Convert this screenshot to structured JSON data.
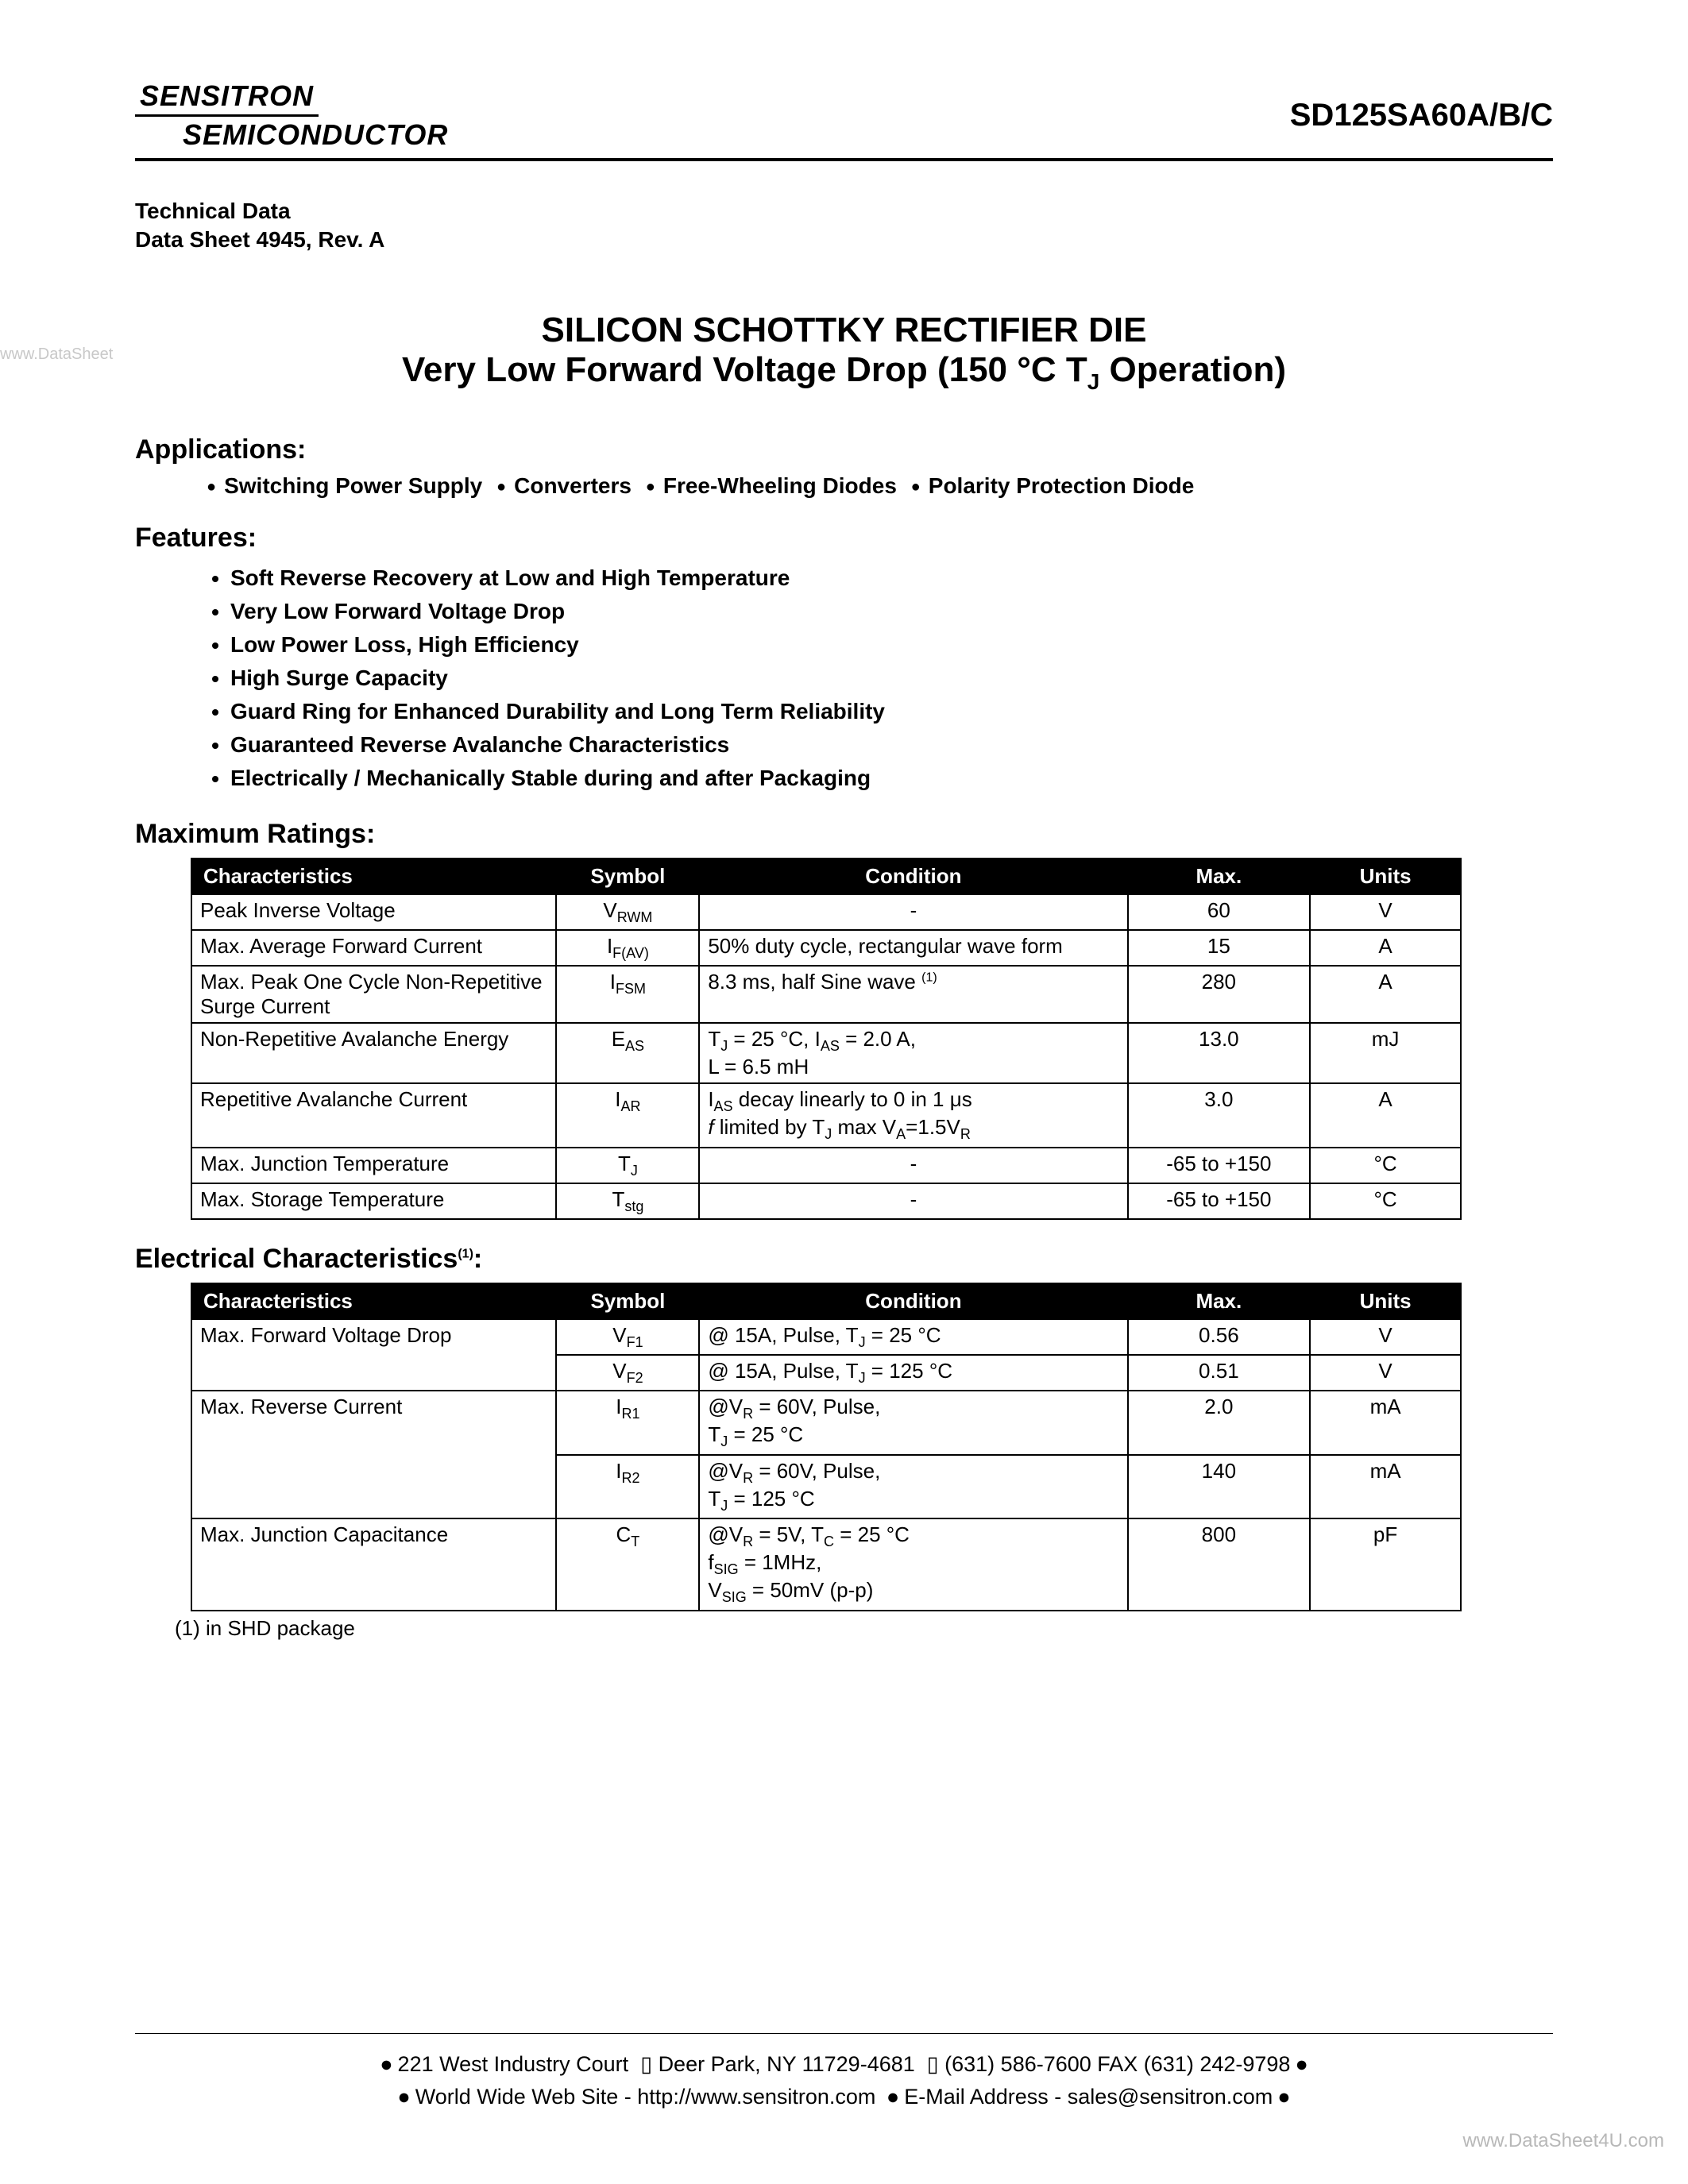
{
  "header": {
    "company_top": "SENSITRON",
    "company_bottom": "SEMICONDUCTOR",
    "part_number": "SD125SA60A/B/C"
  },
  "tech_data": {
    "line1": "Technical Data",
    "line2": "Data Sheet 4945, Rev. A"
  },
  "title": {
    "main": "SILICON SCHOTTKY RECTIFIER DIE",
    "sub_prefix": "Very Low Forward Voltage Drop (150 °C T",
    "sub_j": "J",
    "sub_suffix": " Operation)"
  },
  "sections": {
    "applications_heading": "Applications:",
    "features_heading": "Features:",
    "max_ratings_heading": "Maximum Ratings:",
    "elec_char_heading": "Electrical Characteristics",
    "elec_char_sup": "(1)",
    "elec_char_colon": ":"
  },
  "applications": {
    "items": [
      "Switching Power Supply",
      "Converters",
      "Free-Wheeling Diodes",
      "Polarity Protection Diode"
    ]
  },
  "features": {
    "items": [
      "Soft Reverse Recovery at Low and High Temperature",
      "Very Low Forward Voltage Drop",
      "Low Power Loss, High Efficiency",
      "High Surge Capacity",
      "Guard Ring for Enhanced Durability and Long Term Reliability",
      "Guaranteed Reverse Avalanche Characteristics",
      "Electrically / Mechanically Stable during and after Packaging"
    ]
  },
  "table_headers": {
    "char": "Characteristics",
    "symbol": "Symbol",
    "condition": "Condition",
    "max": "Max.",
    "units": "Units"
  },
  "max_ratings": {
    "rows": [
      {
        "char": "Peak Inverse Voltage",
        "sym_main": "V",
        "sym_sub": "RWM",
        "cond": "-",
        "max": "60",
        "units": "V"
      },
      {
        "char": "Max. Average Forward Current",
        "sym_main": "I",
        "sym_sub": "F(AV)",
        "cond": "50% duty cycle, rectangular wave form",
        "max": "15",
        "units": "A"
      },
      {
        "char": "Max. Peak One Cycle Non-Repetitive Surge Current",
        "sym_main": "I",
        "sym_sub": "FSM",
        "cond": "8.3 ms, half Sine wave ",
        "cond_sup": "(1)",
        "max": "280",
        "units": "A"
      },
      {
        "char": "Non-Repetitive Avalanche Energy",
        "sym_main": "E",
        "sym_sub": "AS",
        "cond_html": "T<sub class='sub'>J</sub> = 25 °C, I<sub class='sub'>AS</sub> = 2.0 A,<br>L = 6.5  mH",
        "max": "13.0",
        "units": "mJ"
      },
      {
        "char": "Repetitive Avalanche Current",
        "sym_main": "I",
        "sym_sub": "AR",
        "cond_html": "I<sub class='sub'>AS</sub> decay linearly to 0 in 1 μs<br><i>f</i> limited by T<sub class='sub'>J</sub> max V<sub class='sub'>A</sub>=1.5V<sub class='sub'>R</sub>",
        "max": "3.0",
        "units": "A"
      },
      {
        "char": "Max. Junction Temperature",
        "sym_main": "T",
        "sym_sub": "J",
        "cond": "-",
        "max": "-65 to +150",
        "units": "°C"
      },
      {
        "char": "Max. Storage Temperature",
        "sym_main": "T",
        "sym_sub": "stg",
        "cond": "-",
        "max": "-65 to +150",
        "units": "°C"
      }
    ]
  },
  "elec_char": {
    "rows": [
      {
        "char": "Max. Forward Voltage Drop",
        "char_rowspan": 2,
        "sym_main": "V",
        "sym_sub": "F1",
        "cond_html": "@ 15A, Pulse, T<sub class='sub'>J</sub> = 25 °C",
        "max": "0.56",
        "units": "V"
      },
      {
        "sym_main": "V",
        "sym_sub": "F2",
        "cond_html": "@ 15A, Pulse, T<sub class='sub'>J</sub> = 125 °C",
        "max": "0.51",
        "units": "V"
      },
      {
        "char": "Max. Reverse Current",
        "char_rowspan": 2,
        "sym_main": "I",
        "sym_sub": "R1",
        "cond_html": "@V<sub class='sub'>R</sub> = 60V, Pulse,<br>T<sub class='sub'>J</sub> = 25 °C",
        "max": "2.0",
        "units": "mA"
      },
      {
        "sym_main": "I",
        "sym_sub": "R2",
        "cond_html": "@V<sub class='sub'>R</sub> = 60V, Pulse,<br>T<sub class='sub'>J</sub> = 125 °C",
        "max": "140",
        "units": "mA"
      },
      {
        "char": "Max. Junction Capacitance",
        "sym_main": "C",
        "sym_sub": "T",
        "cond_html": "@V<sub class='sub'>R</sub> = 5V, T<sub class='sub'>C</sub> = 25 °C<br>f<sub class='sub'>SIG</sub> = 1MHz,<br>V<sub class='sub'>SIG</sub> = 50mV (p-p)",
        "max": "800",
        "units": "pF"
      }
    ]
  },
  "note": "(1) in SHD package",
  "footer": {
    "address": "221 West Industry Court",
    "city": "Deer Park, NY  11729-4681",
    "phone": "(631) 586-7600  FAX (631) 242-9798",
    "web_label": "World Wide Web Site - http://www.sensitron.com",
    "email_label": "E-Mail Address - sales@sensitron.com"
  },
  "watermarks": {
    "left": "www.DataSheet",
    "bottom": "www.DataSheet4U.com"
  }
}
